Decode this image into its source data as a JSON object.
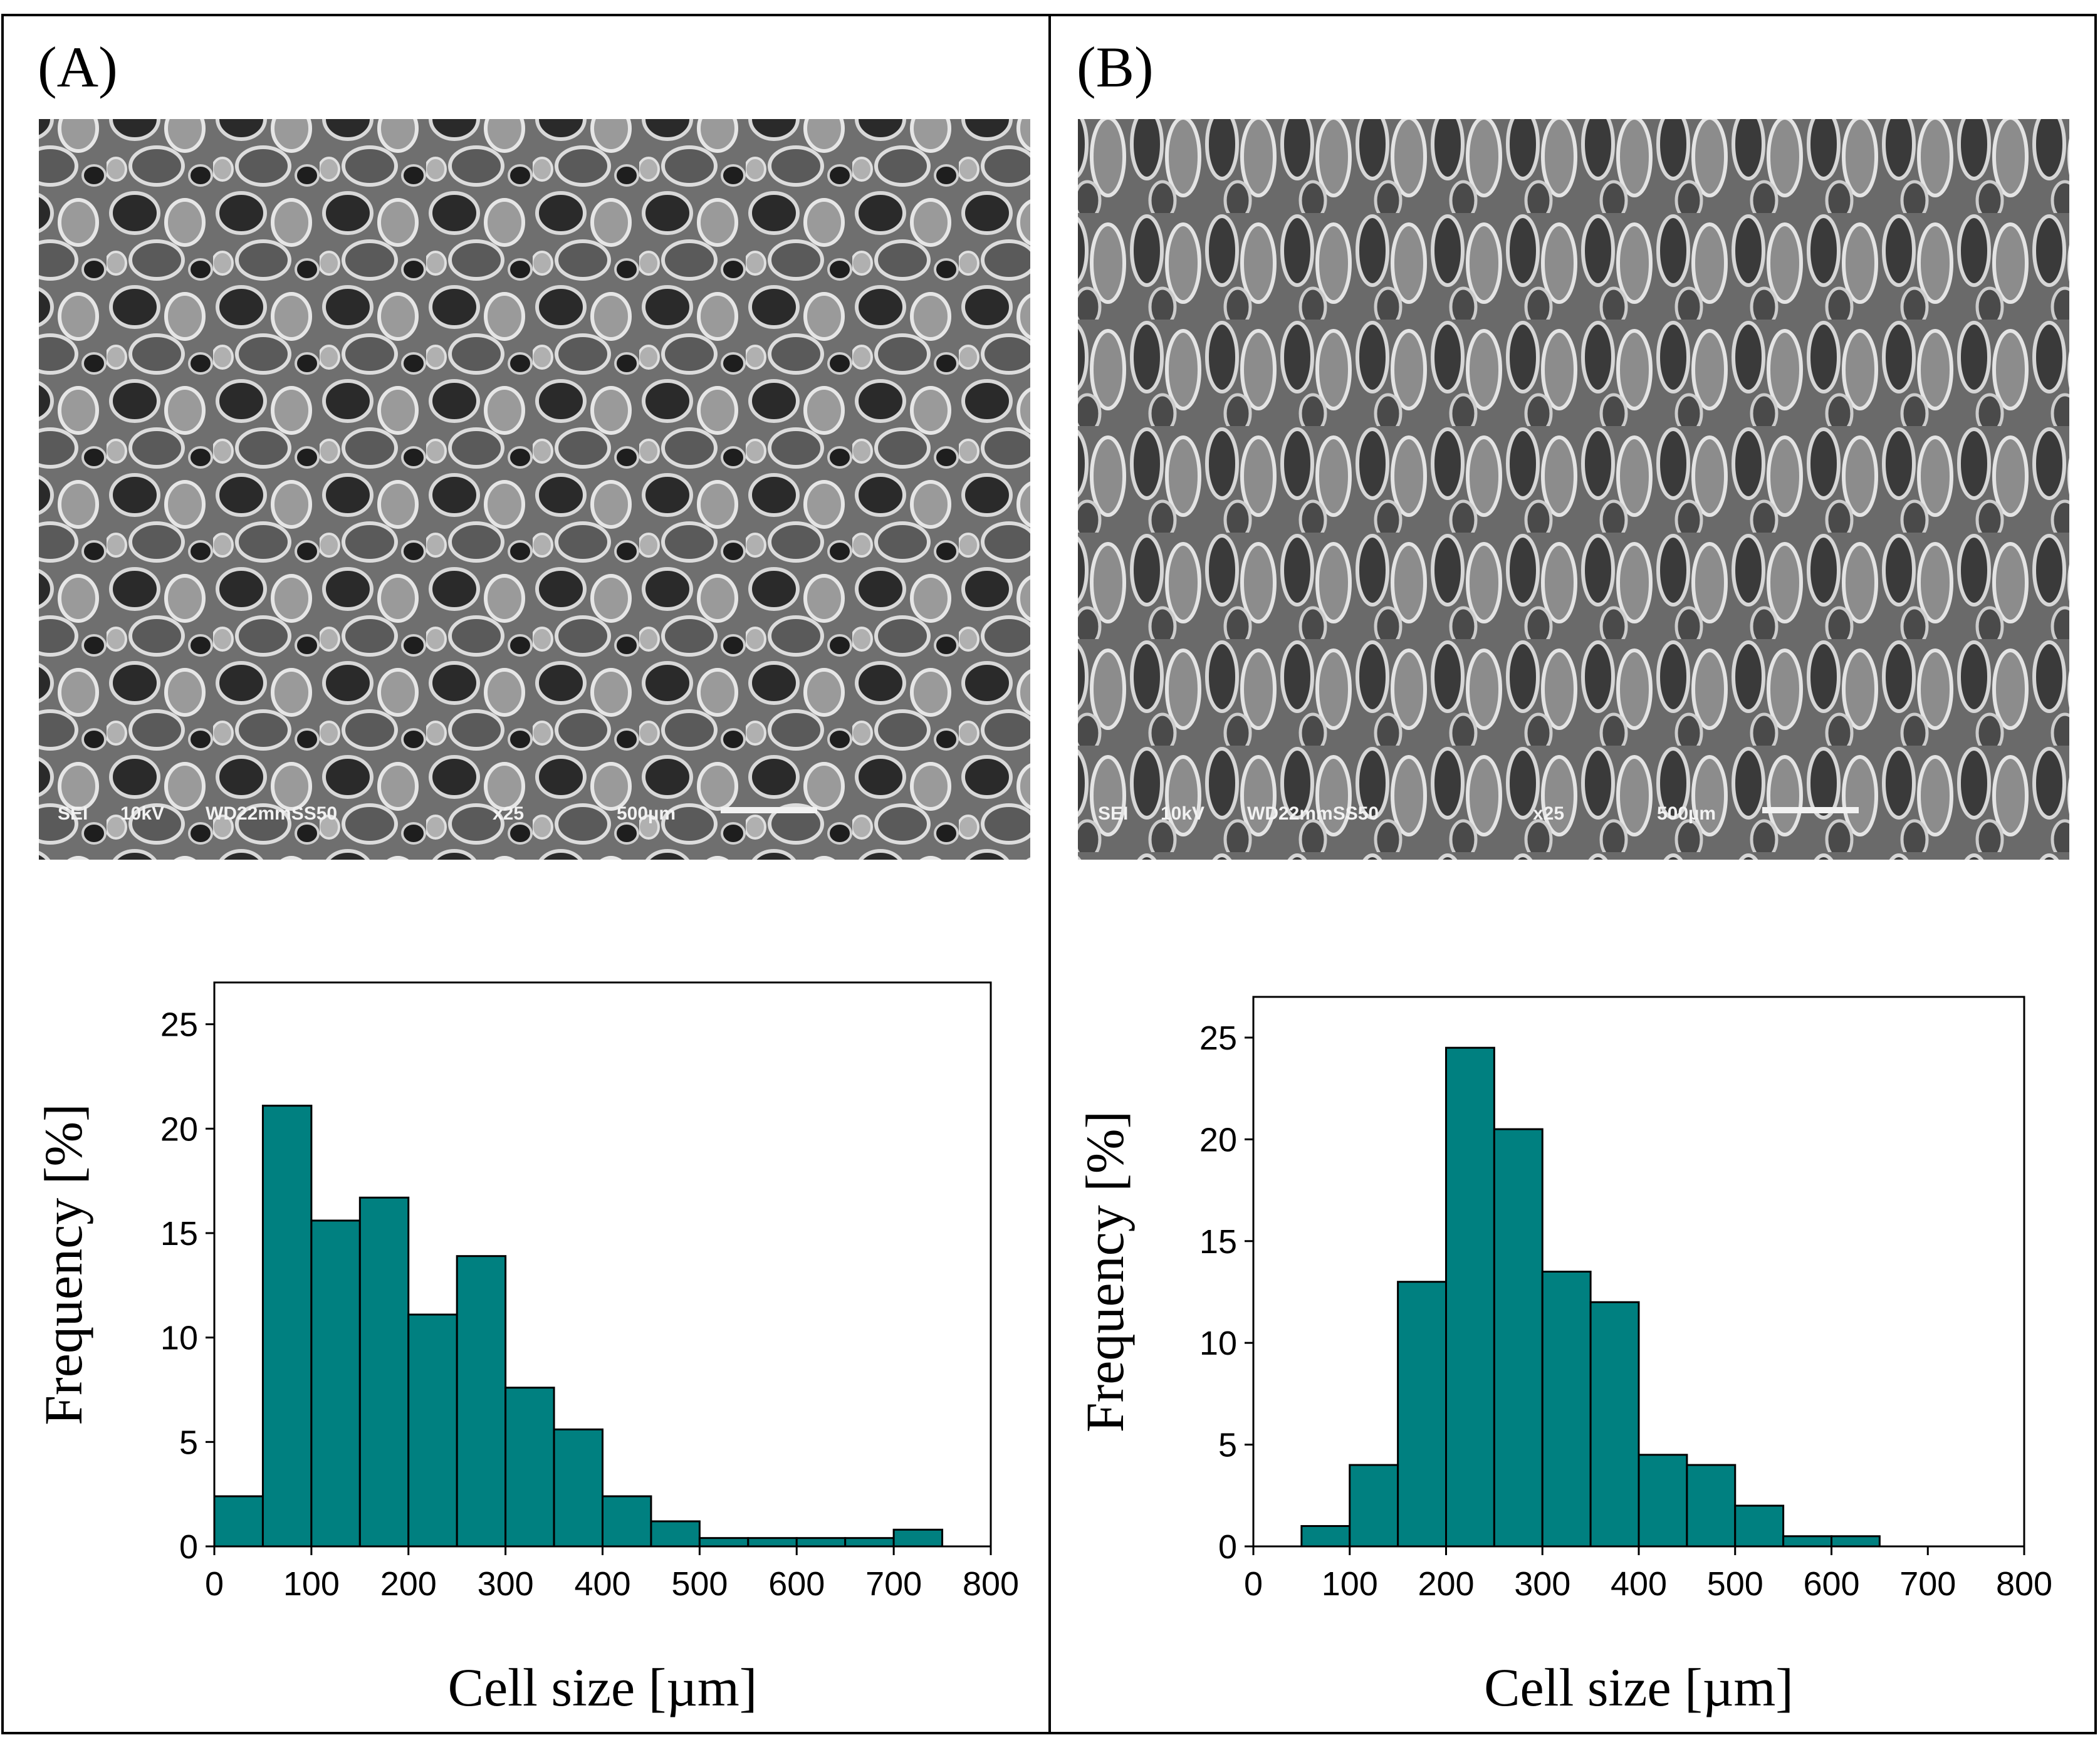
{
  "panels": [
    {
      "label": "(A)",
      "sem_info": {
        "mode": "SEI",
        "voltage": "10kV",
        "wd": "WD22mmSS50",
        "mag": "x25",
        "scale": "500µm"
      }
    },
    {
      "label": "(B)",
      "sem_info": {
        "mode": "SEI",
        "voltage": "10kV",
        "wd": "WD22mmSS50",
        "mag": "x25",
        "scale": "500µm"
      }
    }
  ],
  "colors": {
    "bar": "#008080",
    "sem_bg": "#7a7a7a"
  },
  "chart_data": [
    {
      "type": "bar",
      "panel": "(A)",
      "xlabel": "Cell size [µm]",
      "ylabel": "Frequency [%]",
      "bin_width": 50,
      "bin_starts": [
        0,
        50,
        100,
        150,
        200,
        250,
        300,
        350,
        400,
        450,
        500,
        550,
        600,
        650,
        700
      ],
      "values": [
        2.4,
        21.1,
        15.6,
        16.7,
        11.1,
        13.9,
        7.6,
        5.6,
        2.4,
        1.2,
        0.4,
        0.4,
        0.4,
        0.4,
        0.8
      ],
      "xlim": [
        0,
        800
      ],
      "ylim": [
        0,
        27
      ],
      "xticks": [
        0,
        100,
        200,
        300,
        400,
        500,
        600,
        700,
        800
      ],
      "yticks": [
        0,
        5,
        10,
        15,
        20,
        25
      ],
      "grid": false
    },
    {
      "type": "bar",
      "panel": "(B)",
      "xlabel": "Cell size [µm]",
      "ylabel": "Frequency [%]",
      "bin_width": 50,
      "bin_starts": [
        50,
        100,
        150,
        200,
        250,
        300,
        350,
        400,
        450,
        500,
        550,
        600
      ],
      "values": [
        1.0,
        4.0,
        13.0,
        24.5,
        20.5,
        13.5,
        12.0,
        4.5,
        4.0,
        2.0,
        0.5,
        0.5
      ],
      "xlim": [
        0,
        800
      ],
      "ylim": [
        0,
        27
      ],
      "xticks": [
        0,
        100,
        200,
        300,
        400,
        500,
        600,
        700,
        800
      ],
      "yticks": [
        0,
        5,
        10,
        15,
        20,
        25
      ],
      "grid": false
    }
  ]
}
